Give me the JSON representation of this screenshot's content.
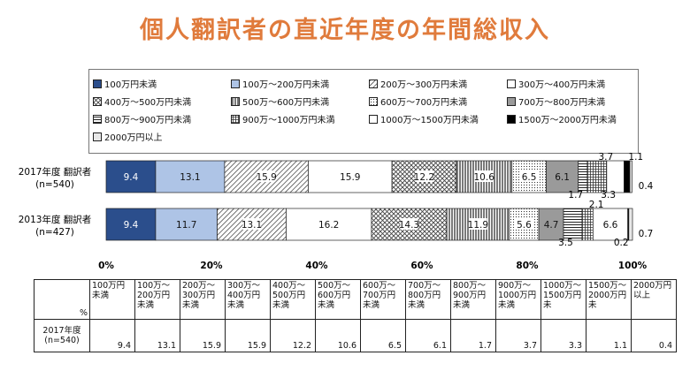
{
  "title": "個人翻訳者の直近年度の年間総収入",
  "chart_data": {
    "type": "bar",
    "orientation": "horizontal",
    "stacked": "percent",
    "categories": [
      "100万円未満",
      "100万～200万円未満",
      "200万～300万円未満",
      "300万～400万円未満",
      "400万～500万円未満",
      "500万～600万円未満",
      "600万～700万円未満",
      "700万～800万円未満",
      "800万～900万円未満",
      "900万～1000万円未満",
      "1000万～1500万円未満",
      "1500万～2000万円未満",
      "2000万円以上"
    ],
    "series": [
      {
        "name": "2017年度 翻訳者",
        "n": "(n=540)",
        "values": [
          9.4,
          13.1,
          15.9,
          15.9,
          12.2,
          10.6,
          6.5,
          6.1,
          1.7,
          3.7,
          3.3,
          1.1,
          0.4
        ]
      },
      {
        "name": "2013年度 翻訳者",
        "n": "(n=427)",
        "values": [
          9.4,
          11.7,
          13.1,
          16.2,
          14.3,
          11.9,
          5.6,
          4.7,
          3.5,
          2.1,
          6.6,
          0.2,
          0.7
        ]
      }
    ],
    "xticks": [
      "0%",
      "20%",
      "40%",
      "60%",
      "80%",
      "100%"
    ],
    "xlim": [
      0,
      100
    ],
    "legend_position": "top"
  },
  "table": {
    "corner": "%",
    "headers": [
      "100万円未満",
      "100万～200万円未満",
      "200万～300万円未満",
      "300万～400万円未満",
      "400万～500万円未満",
      "500万～600万円未満",
      "600万～700万円未満",
      "700万～800万円未満",
      "800万～900万円未満",
      "900万～1000万円未満",
      "1000万～1500万円未",
      "1500万～2000万円未",
      "2000万円以上"
    ],
    "row_label": "2017年度",
    "row_n": "(n=540)",
    "values": [
      "9.4",
      "13.1",
      "15.9",
      "15.9",
      "12.2",
      "10.6",
      "6.5",
      "6.1",
      "1.7",
      "3.7",
      "3.3",
      "1.1",
      "0.4"
    ]
  },
  "colors": [
    "#2b4e8c",
    "#aec4e6",
    "pattern-diag",
    "#ffffff",
    "pattern-cross",
    "pattern-vert",
    "pattern-dots",
    "#9a9a9a",
    "pattern-horiz",
    "pattern-grid",
    "#ffffff",
    "#000000",
    "#e8e8e8"
  ]
}
